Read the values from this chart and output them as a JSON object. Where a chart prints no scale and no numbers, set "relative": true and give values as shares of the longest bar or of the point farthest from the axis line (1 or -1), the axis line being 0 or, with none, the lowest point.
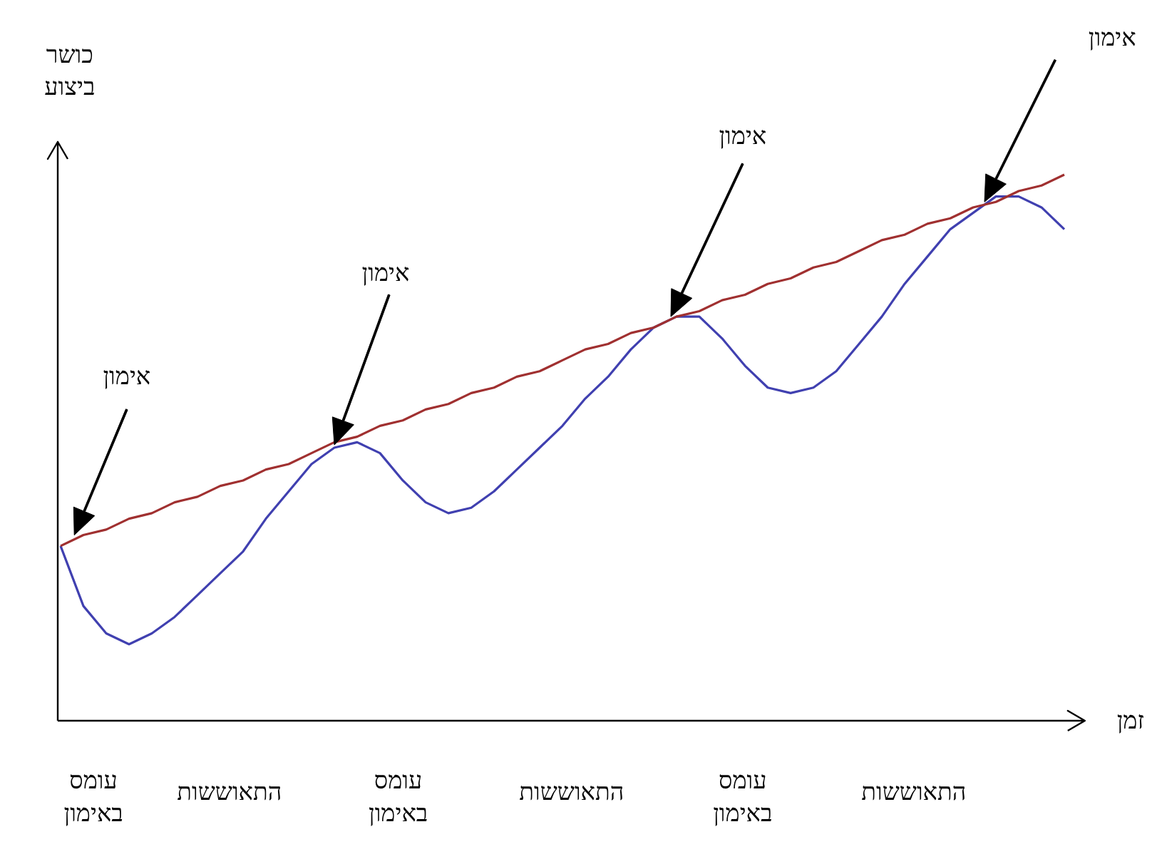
{
  "chart_data": {
    "type": "line",
    "relative": true,
    "marker": "none",
    "line_style": "solid",
    "xlabel": "זמן",
    "ylabel": "כושר\nביצוע",
    "categories": [
      null,
      null,
      null,
      null,
      null,
      null,
      null,
      null,
      null,
      null,
      null,
      null,
      null,
      null,
      null,
      null,
      null,
      null,
      null,
      null,
      null,
      null,
      null,
      null,
      null,
      null,
      null,
      null,
      null,
      null,
      null,
      null,
      null,
      null,
      null,
      null,
      null,
      null,
      null,
      null,
      null,
      null,
      null,
      null,
      null
    ],
    "series": [
      {
        "color": "#4040b0",
        "values": [
          0.32,
          0.21,
          0.16,
          0.14,
          0.16,
          0.19,
          0.23,
          0.27,
          0.31,
          0.37,
          0.42,
          0.47,
          0.5,
          0.51,
          0.49,
          0.44,
          0.4,
          0.38,
          0.39,
          0.42,
          0.46,
          0.5,
          0.54,
          0.59,
          0.63,
          0.68,
          0.72,
          0.74,
          0.74,
          0.7,
          0.65,
          0.61,
          0.6,
          0.61,
          0.64,
          0.69,
          0.74,
          0.8,
          0.85,
          0.9,
          0.93,
          0.96,
          0.96,
          0.94,
          0.9
        ]
      },
      {
        "color": "#a03030",
        "values": [
          0.32,
          0.34,
          0.35,
          0.37,
          0.38,
          0.4,
          0.41,
          0.43,
          0.44,
          0.46,
          0.47,
          0.49,
          0.51,
          0.52,
          0.54,
          0.55,
          0.57,
          0.58,
          0.6,
          0.61,
          0.63,
          0.64,
          0.66,
          0.68,
          0.69,
          0.71,
          0.72,
          0.74,
          0.75,
          0.77,
          0.78,
          0.8,
          0.81,
          0.83,
          0.84,
          0.86,
          0.88,
          0.89,
          0.91,
          0.92,
          0.94,
          0.95,
          0.97,
          0.98,
          1.0
        ]
      }
    ],
    "annotations": [
      "אימון",
      "אימון",
      "אימון",
      "אימון",
      "עומס\nבאימון",
      "התאוששות",
      "עומס\nבאימון",
      "התאוששות",
      "עומס\nבאימון",
      "התאוששות"
    ]
  }
}
